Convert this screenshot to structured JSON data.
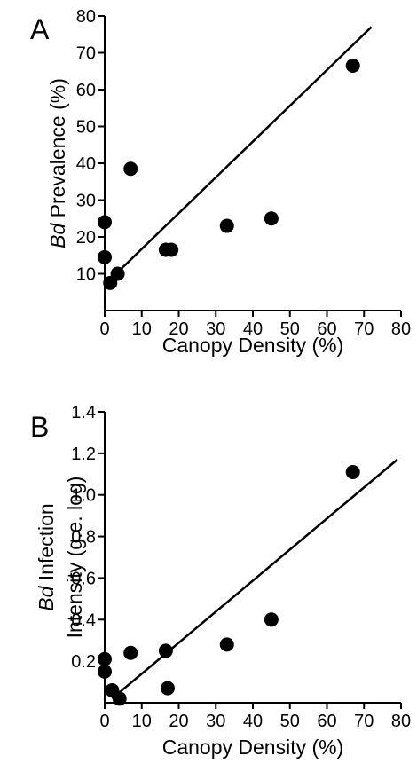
{
  "chart_data": [
    {
      "type": "scatter",
      "panel_label": "A",
      "xlabel": "Canopy Density (%)",
      "ylabel_italic": "Bd",
      "ylabel_rest": " Prevalence (%)",
      "xlim": [
        0,
        80
      ],
      "ylim": [
        0,
        80
      ],
      "xticks": [
        "0",
        "10",
        "20",
        "30",
        "40",
        "50",
        "60",
        "70",
        "80"
      ],
      "yticks": [
        "10",
        "20",
        "30",
        "40",
        "50",
        "60",
        "70",
        "80"
      ],
      "x": [
        0,
        0,
        1.5,
        3.5,
        7,
        16.5,
        18,
        33,
        45,
        67
      ],
      "y": [
        24,
        14.5,
        7.5,
        10,
        38.5,
        16.5,
        16.5,
        23,
        25,
        66.5
      ],
      "trendline": [
        [
          0,
          7
        ],
        [
          72,
          77
        ]
      ]
    },
    {
      "type": "scatter",
      "panel_label": "B",
      "xlabel": "Canopy Density (%)",
      "ylabel_line1_italic": "Bd",
      "ylabel_line1_rest": " Infection",
      "ylabel_line2": "Intensity (g.e. log)",
      "xlim": [
        0,
        80
      ],
      "ylim": [
        0,
        1.4
      ],
      "xticks": [
        "0",
        "10",
        "20",
        "30",
        "40",
        "50",
        "60",
        "70",
        "80"
      ],
      "yticks": [
        "0.2",
        "0.4",
        "0.6",
        "0.8",
        "1.0",
        "1.2",
        "1.4"
      ],
      "x": [
        0,
        0,
        2,
        4,
        7,
        16.5,
        17,
        33,
        45,
        67
      ],
      "y": [
        0.21,
        0.15,
        0.06,
        0.02,
        0.24,
        0.25,
        0.07,
        0.28,
        0.4,
        1.11
      ],
      "trendline": [
        [
          2,
          0.02
        ],
        [
          79,
          1.17
        ]
      ]
    }
  ]
}
